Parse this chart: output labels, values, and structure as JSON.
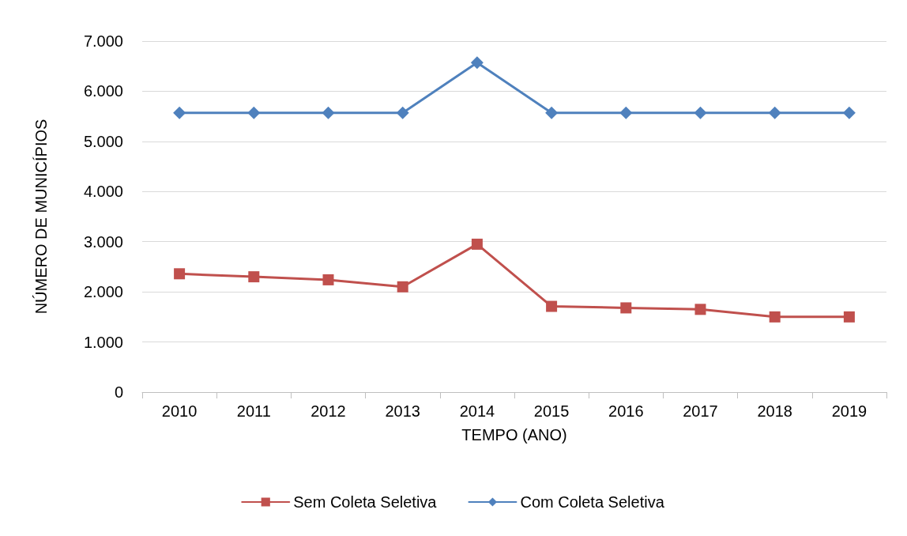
{
  "chart_data": {
    "type": "line",
    "xlabel": "TEMPO (ANO)",
    "ylabel": "NÚMERO DE MUNICÍPIOS",
    "categories": [
      "2010",
      "2011",
      "2012",
      "2013",
      "2014",
      "2015",
      "2016",
      "2017",
      "2018",
      "2019"
    ],
    "series": [
      {
        "name": "Sem Coleta Seletiva",
        "color": "#c0504d",
        "marker": "square",
        "values": [
          2360,
          2300,
          2240,
          2100,
          2950,
          1710,
          1680,
          1650,
          1500,
          1500
        ]
      },
      {
        "name": "Com Coleta Seletiva",
        "color": "#4f81bd",
        "marker": "diamond",
        "values": [
          5570,
          5570,
          5570,
          5570,
          6570,
          5570,
          5570,
          5570,
          5570,
          5570
        ]
      }
    ],
    "ylim": [
      0,
      7000
    ],
    "yticks": [
      0,
      {
        "value": 1000,
        "label": "1.000"
      },
      {
        "value": 2000,
        "label": "2.000"
      },
      {
        "value": 3000,
        "label": "3.000"
      },
      {
        "value": 4000,
        "label": "4.000"
      },
      {
        "value": 5000,
        "label": "5.000"
      },
      {
        "value": 6000,
        "label": "6.000"
      },
      {
        "value": 7000,
        "label": "7.000"
      }
    ],
    "grid": "y",
    "legend": "bottom",
    "line_style": "solid"
  }
}
